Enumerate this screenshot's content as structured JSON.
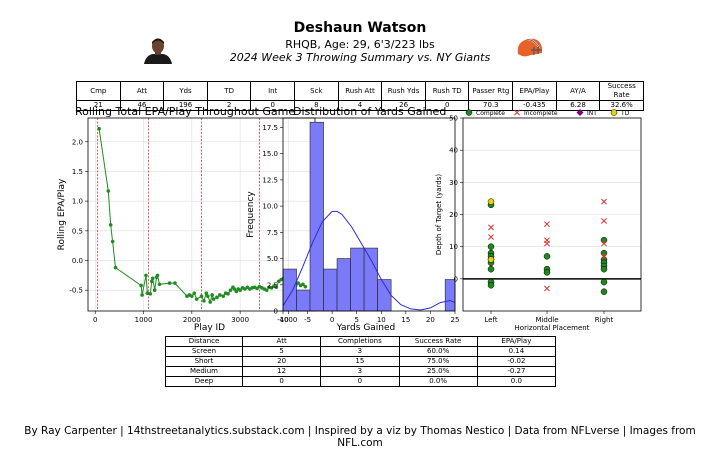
{
  "header": {
    "title": "Deshaun Watson",
    "subtitle": "RHQB, Age: 29, 6'3/223 lbs",
    "game": "2024 Week 3 Throwing Summary vs. NY Giants"
  },
  "stats_table": {
    "headers": [
      "Cmp",
      "Att",
      "Yds",
      "TD",
      "Int",
      "Sck",
      "Rush Att",
      "Rush Yds",
      "Rush TD",
      "Passer Rtg",
      "EPA/Play",
      "AY/A",
      "Success Rate"
    ],
    "values": [
      "21",
      "46",
      "196",
      "2",
      "0",
      "8",
      "4",
      "26",
      "0",
      "70.3",
      "-0.435",
      "6.28",
      "32.6%"
    ]
  },
  "distance_table": {
    "headers": [
      "Distance",
      "Att",
      "Completions",
      "Success Rate",
      "EPA/Play"
    ],
    "rows": [
      [
        "Screen",
        "5",
        "3",
        "60.0%",
        "0.14"
      ],
      [
        "Short",
        "20",
        "15",
        "75.0%",
        "-0.02"
      ],
      [
        "Medium",
        "12",
        "3",
        "25.0%",
        "-0.27"
      ],
      [
        "Deep",
        "0",
        "0",
        "0.0%",
        "0.0"
      ]
    ]
  },
  "footer": "By Ray Carpenter | 14thstreetanalytics.substack.com | Inspired by a viz by Thomas Nestico | Data from NFLverse | Images from NFL.com",
  "colors": {
    "line": "#228B22",
    "bar": "#7b7bfa",
    "kde": "#2a2ae0",
    "incomplete": "#e03030",
    "int": "#800080",
    "td": "#e8d40a",
    "vline": "#e03030",
    "helmet": "#e8602a"
  },
  "icons": {
    "headshot": "player-headshot-image",
    "logo": "browns-helmet-logo"
  },
  "chart_data": [
    {
      "type": "line",
      "title": "Rolling Total EPA/Play Throughout Game",
      "xlabel": "Play ID",
      "ylabel": "Rolling EPA/Play",
      "xlim": [
        -150,
        4550
      ],
      "ylim": [
        -0.85,
        2.4
      ],
      "xticks": [
        0,
        1000,
        2000,
        3000,
        4000
      ],
      "yticks": [
        -0.5,
        0.0,
        0.5,
        1.0,
        1.5,
        2.0
      ],
      "ytick_labels": [
        "-0.5",
        "0.0",
        "0.5",
        "1.0",
        "1.5",
        "2.0"
      ],
      "grid": true,
      "vlines_x": [
        50,
        1100,
        2200,
        3400
      ],
      "series": [
        {
          "x": [
            80,
            270,
            320,
            360,
            420,
            950,
            970,
            1050,
            1080,
            1140,
            1170,
            1190,
            1230,
            1270,
            1290,
            1330,
            1540,
            1650,
            1900,
            1950,
            2000,
            2050,
            2100,
            2200,
            2250,
            2300,
            2330,
            2380,
            2420,
            2450,
            2520,
            2580,
            2650,
            2700,
            2750,
            2800,
            2850,
            2880,
            2920,
            2960,
            3000,
            3050,
            3100,
            3150,
            3200,
            3250,
            3300,
            3350,
            3400,
            3450,
            3500,
            3550,
            3600,
            3650,
            3700,
            3750,
            3800,
            3850,
            3900,
            3950,
            4000,
            4050,
            4100,
            4150,
            4200,
            4250,
            4300,
            4350
          ],
          "y": [
            2.22,
            1.17,
            0.6,
            0.32,
            -0.12,
            -0.42,
            -0.58,
            -0.25,
            -0.55,
            -0.56,
            -0.35,
            -0.3,
            -0.5,
            -0.28,
            -0.25,
            -0.4,
            -0.38,
            -0.38,
            -0.6,
            -0.58,
            -0.6,
            -0.55,
            -0.65,
            -0.6,
            -0.68,
            -0.55,
            -0.6,
            -0.7,
            -0.58,
            -0.65,
            -0.62,
            -0.58,
            -0.6,
            -0.55,
            -0.56,
            -0.5,
            -0.45,
            -0.48,
            -0.52,
            -0.48,
            -0.5,
            -0.46,
            -0.48,
            -0.45,
            -0.48,
            -0.46,
            -0.45,
            -0.47,
            -0.44,
            -0.46,
            -0.48,
            -0.5,
            -0.45,
            -0.46,
            -0.43,
            -0.45,
            -0.35,
            -0.32,
            -0.3,
            -0.35,
            -0.38,
            -0.3,
            -0.35,
            -0.42,
            -0.38,
            -0.42,
            -0.4,
            -0.44
          ]
        }
      ]
    },
    {
      "type": "bar",
      "title": "Distribution of Yards Gained",
      "xlabel": "Yards Gained",
      "ylabel": "Frequency",
      "xlim": [
        -10,
        25
      ],
      "ylim": [
        0,
        18.4
      ],
      "xticks": [
        -10,
        -5,
        0,
        5,
        10,
        15,
        20,
        25
      ],
      "yticks": [
        0,
        2.5,
        5.0,
        7.5,
        10.0,
        12.5,
        15.0,
        17.5
      ],
      "ytick_labels": [
        "0",
        "2.5",
        "5.0",
        "7.5",
        "10.0",
        "12.5",
        "15.0",
        "17.5"
      ],
      "bin_edges": [
        -10,
        -7.25,
        -4.5,
        -1.75,
        1,
        3.75,
        6.5,
        9.25,
        12,
        14.75,
        17.5,
        20.25,
        23,
        25
      ],
      "values": [
        4,
        2,
        18,
        4,
        5,
        6,
        6,
        3,
        0,
        0,
        0,
        0,
        3
      ],
      "kde": {
        "x": [
          -10,
          -8,
          -6,
          -4,
          -2,
          0,
          1,
          2,
          4,
          6,
          8,
          10,
          12,
          14,
          16,
          18,
          20,
          22,
          24,
          25
        ],
        "y": [
          0.5,
          2.0,
          4.2,
          6.5,
          8.5,
          9.5,
          9.5,
          9.2,
          8.0,
          6.4,
          4.8,
          3.0,
          1.5,
          0.6,
          0.2,
          0.1,
          0.3,
          0.8,
          1.0,
          0.8
        ]
      }
    },
    {
      "type": "scatter",
      "xlabel": "Horizontal Placement",
      "ylabel": "Depth of Target (yards)",
      "categories": [
        "Left",
        "Middle",
        "Right"
      ],
      "ylim": [
        -10,
        50
      ],
      "yticks": [
        0,
        10,
        20,
        30,
        40,
        50
      ],
      "grid": true,
      "legend": [
        "Complete",
        "Incomplete",
        "INT",
        "TD"
      ],
      "legend_position": "top",
      "series": [
        {
          "name": "Complete",
          "marker": "circle",
          "points": [
            {
              "x": "Left",
              "y": 23
            },
            {
              "x": "Left",
              "y": 10
            },
            {
              "x": "Left",
              "y": 8
            },
            {
              "x": "Left",
              "y": 7
            },
            {
              "x": "Left",
              "y": 6
            },
            {
              "x": "Left",
              "y": 5
            },
            {
              "x": "Left",
              "y": 3
            },
            {
              "x": "Left",
              "y": -1
            },
            {
              "x": "Left",
              "y": -2
            },
            {
              "x": "Middle",
              "y": 7
            },
            {
              "x": "Middle",
              "y": 3
            },
            {
              "x": "Middle",
              "y": 2
            },
            {
              "x": "Right",
              "y": 12
            },
            {
              "x": "Right",
              "y": 8
            },
            {
              "x": "Right",
              "y": 6
            },
            {
              "x": "Right",
              "y": 5
            },
            {
              "x": "Right",
              "y": 4
            },
            {
              "x": "Right",
              "y": 3
            },
            {
              "x": "Right",
              "y": -1
            },
            {
              "x": "Right",
              "y": -4
            }
          ]
        },
        {
          "name": "Incomplete",
          "marker": "x",
          "points": [
            {
              "x": "Left",
              "y": 16
            },
            {
              "x": "Left",
              "y": 13
            },
            {
              "x": "Middle",
              "y": 17
            },
            {
              "x": "Middle",
              "y": 12
            },
            {
              "x": "Middle",
              "y": 11
            },
            {
              "x": "Middle",
              "y": -3
            },
            {
              "x": "Right",
              "y": 24
            },
            {
              "x": "Right",
              "y": 18
            },
            {
              "x": "Right",
              "y": 11
            },
            {
              "x": "Right",
              "y": 7
            }
          ]
        },
        {
          "name": "INT",
          "marker": "diamond",
          "points": []
        },
        {
          "name": "TD",
          "marker": "circle",
          "points": [
            {
              "x": "Left",
              "y": 24
            },
            {
              "x": "Left",
              "y": 6
            }
          ]
        }
      ]
    }
  ]
}
